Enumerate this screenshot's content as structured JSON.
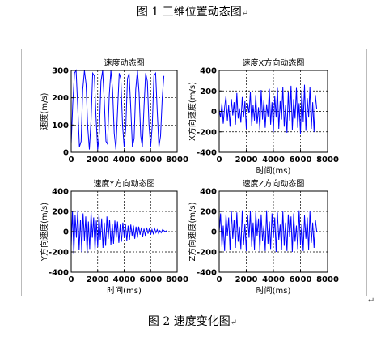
{
  "captions": {
    "top": "图 1  三维位置动态图",
    "bottom": "图 2  速度变化图",
    "return_mark": "↵"
  },
  "chart_data": [
    {
      "type": "line",
      "title": "速度动态图",
      "xlabel": "",
      "ylabel": "速度(m/s)",
      "xlim": [
        0,
        8000
      ],
      "ylim": [
        0,
        300
      ],
      "xticks": [
        0,
        2000,
        4000,
        6000,
        8000
      ],
      "yticks": [
        0,
        100,
        200,
        300
      ],
      "grid": true,
      "color": "#0000ff",
      "series": [
        {
          "x": [
            0,
            125,
            250,
            375,
            500,
            625,
            750,
            875,
            1000,
            1125,
            1250,
            1375,
            1500,
            1625,
            1750,
            1875,
            2000,
            2125,
            2250,
            2375,
            2500,
            2625,
            2750,
            2875,
            3000,
            3125,
            3250,
            3375,
            3500,
            3625,
            3750,
            3875,
            4000,
            4125,
            4250,
            4375,
            4500,
            4625,
            4750,
            4875,
            5000,
            5125,
            5250,
            5375,
            5500,
            5625,
            5750,
            5875,
            6000,
            6125,
            6250,
            6375,
            6500,
            6625,
            6750,
            6875,
            7000
          ],
          "y": [
            30,
            180,
            290,
            300,
            160,
            20,
            40,
            230,
            300,
            250,
            90,
            10,
            120,
            290,
            280,
            130,
            10,
            70,
            260,
            300,
            190,
            40,
            30,
            210,
            300,
            230,
            70,
            10,
            150,
            290,
            270,
            100,
            20,
            90,
            270,
            290,
            160,
            20,
            50,
            230,
            300,
            220,
            60,
            20,
            170,
            290,
            260,
            100,
            20,
            100,
            280,
            290,
            150,
            20,
            60,
            200,
            280
          ]
        }
      ]
    },
    {
      "type": "line",
      "title": "速度X方向动态图",
      "xlabel": "时间(ms)",
      "ylabel": "X方向速度(m/s)",
      "xlim": [
        0,
        8000
      ],
      "ylim": [
        -400,
        400
      ],
      "xticks": [
        0,
        2000,
        4000,
        6000,
        8000
      ],
      "yticks": [
        -400,
        -200,
        0,
        200,
        400
      ],
      "grid": true,
      "color": "#0000ff",
      "series": [
        {
          "x": [
            0,
            100,
            200,
            300,
            400,
            500,
            600,
            700,
            800,
            900,
            1000,
            1100,
            1200,
            1300,
            1400,
            1500,
            1600,
            1700,
            1800,
            1900,
            2000,
            2100,
            2200,
            2300,
            2400,
            2500,
            2600,
            2700,
            2800,
            2900,
            3000,
            3100,
            3200,
            3300,
            3400,
            3500,
            3600,
            3700,
            3800,
            3900,
            4000,
            4100,
            4200,
            4300,
            4400,
            4500,
            4600,
            4700,
            4800,
            4900,
            5000,
            5100,
            5200,
            5300,
            5400,
            5500,
            5600,
            5700,
            5800,
            5900,
            6000,
            6100,
            6200,
            6300,
            6400,
            6500,
            6600,
            6700,
            6800,
            6900,
            7000,
            7100,
            7200
          ],
          "y": [
            20,
            -60,
            80,
            -120,
            40,
            150,
            -90,
            60,
            -150,
            120,
            -40,
            90,
            -130,
            180,
            -70,
            30,
            -110,
            140,
            -60,
            100,
            -170,
            80,
            -20,
            190,
            -140,
            60,
            -90,
            160,
            -120,
            40,
            -180,
            210,
            -80,
            110,
            -160,
            70,
            -50,
            220,
            -130,
            90,
            -200,
            150,
            -60,
            230,
            -170,
            100,
            -80,
            240,
            -150,
            60,
            -210,
            190,
            -90,
            250,
            -180,
            120,
            -70,
            230,
            -160,
            80,
            -220,
            200,
            -100,
            260,
            -190,
            130,
            -60,
            240,
            -170,
            90,
            -200,
            160,
            20
          ]
        }
      ]
    },
    {
      "type": "line",
      "title": "速度Y方向动态图",
      "xlabel": "时间(ms)",
      "ylabel": "Y方向速度(m/s)",
      "xlim": [
        0,
        8000
      ],
      "ylim": [
        -400,
        400
      ],
      "xticks": [
        0,
        2000,
        4000,
        6000,
        8000
      ],
      "yticks": [
        -400,
        -200,
        0,
        200,
        400
      ],
      "grid": true,
      "color": "#0000ff",
      "series": [
        {
          "x": [
            0,
            100,
            200,
            300,
            400,
            500,
            600,
            700,
            800,
            900,
            1000,
            1100,
            1200,
            1300,
            1400,
            1500,
            1600,
            1700,
            1800,
            1900,
            2000,
            2100,
            2200,
            2300,
            2400,
            2500,
            2600,
            2700,
            2800,
            2900,
            3000,
            3100,
            3200,
            3300,
            3400,
            3500,
            3600,
            3700,
            3800,
            3900,
            4000,
            4100,
            4200,
            4300,
            4400,
            4500,
            4600,
            4700,
            4800,
            4900,
            5000,
            5100,
            5200,
            5300,
            5400,
            5500,
            5600,
            5700,
            5800,
            5900,
            6000,
            6100,
            6200,
            6300,
            6400,
            6500,
            6600,
            6700,
            6800,
            6900,
            7000,
            7100,
            7200
          ],
          "y": [
            -150,
            200,
            -220,
            160,
            -60,
            210,
            -180,
            120,
            -200,
            180,
            -90,
            150,
            -210,
            100,
            -170,
            190,
            -60,
            140,
            -190,
            110,
            -150,
            170,
            -80,
            130,
            -160,
            90,
            -140,
            150,
            -70,
            120,
            -130,
            80,
            -120,
            110,
            -60,
            100,
            -110,
            70,
            -100,
            90,
            -50,
            80,
            -90,
            60,
            -80,
            70,
            -40,
            60,
            -70,
            50,
            -60,
            50,
            -30,
            40,
            -50,
            30,
            -40,
            40,
            -20,
            30,
            -30,
            20,
            -20,
            30,
            -10,
            20,
            -20,
            10,
            -10,
            20,
            10,
            0,
            10
          ]
        }
      ]
    },
    {
      "type": "line",
      "title": "速度Z方向动态图",
      "xlabel": "时间(ms)",
      "ylabel": "Z方向速度(m/s)",
      "xlim": [
        0,
        8000
      ],
      "ylim": [
        -400,
        400
      ],
      "xticks": [
        0,
        2000,
        4000,
        6000,
        8000
      ],
      "yticks": [
        -400,
        -200,
        0,
        200,
        400
      ],
      "grid": true,
      "color": "#0000ff",
      "series": [
        {
          "x": [
            0,
            100,
            200,
            300,
            400,
            500,
            600,
            700,
            800,
            900,
            1000,
            1100,
            1200,
            1300,
            1400,
            1500,
            1600,
            1700,
            1800,
            1900,
            2000,
            2100,
            2200,
            2300,
            2400,
            2500,
            2600,
            2700,
            2800,
            2900,
            3000,
            3100,
            3200,
            3300,
            3400,
            3500,
            3600,
            3700,
            3800,
            3900,
            4000,
            4100,
            4200,
            4300,
            4400,
            4500,
            4600,
            4700,
            4800,
            4900,
            5000,
            5100,
            5200,
            5300,
            5400,
            5500,
            5600,
            5700,
            5800,
            5900,
            6000,
            6100,
            6200,
            6300,
            6400,
            6500,
            6600,
            6700,
            6800,
            6900,
            7000,
            7100,
            7200
          ],
          "y": [
            0,
            180,
            -150,
            60,
            -190,
            170,
            -40,
            140,
            -180,
            200,
            -70,
            120,
            -160,
            190,
            -100,
            50,
            -170,
            210,
            -130,
            80,
            -190,
            160,
            -60,
            200,
            -150,
            90,
            -180,
            190,
            -40,
            130,
            -200,
            170,
            -90,
            60,
            -190,
            210,
            -120,
            100,
            -170,
            180,
            -60,
            140,
            -200,
            190,
            -80,
            70,
            -180,
            200,
            -140,
            90,
            -190,
            170,
            -50,
            150,
            -200,
            180,
            -100,
            60,
            -170,
            210,
            -130,
            80,
            -190,
            160,
            -70,
            140,
            -180,
            200,
            -110,
            90,
            -160,
            120,
            0
          ]
        }
      ]
    }
  ]
}
